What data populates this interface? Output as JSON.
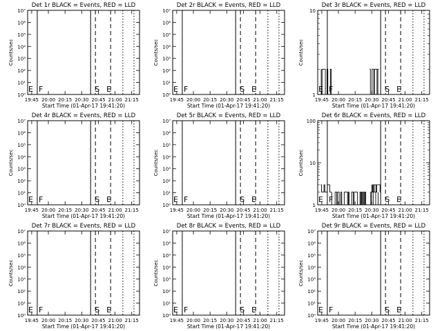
{
  "x_ticks": [
    "19:45",
    "20:00",
    "20:15",
    "20:30",
    "20:45",
    "21:00",
    "21:15"
  ],
  "x_label": "Start Time (01-Apr-17 19:41:20)",
  "y_label": "Counts/sec",
  "marker_letters": {
    "e": "E",
    "f": "F",
    "s": "S",
    "end": "E"
  },
  "colors": {
    "events": "#000000",
    "lld": "#ff0000"
  },
  "chart_data": [
    {
      "type": "line",
      "title": "Det 1r BLACK = Events, RED = LLD",
      "xlim": [
        "19:41:20",
        "21:22:00"
      ],
      "ylim": [
        1,
        10000000
      ],
      "yscale": "log",
      "y_ticks": [
        "10⁰",
        "10¹",
        "10²",
        "10³",
        "10⁴",
        "10⁵",
        "10⁶",
        "10⁷"
      ],
      "y_tick_values": [
        1,
        10,
        100,
        1000,
        10000,
        100000,
        1000000,
        10000000
      ],
      "markers": {
        "E": "19:41:20",
        "F": "19:50:00",
        "solid_line": "20:38:00",
        "S": "20:43:00",
        "dashed_1": "20:42:20",
        "E_end": "20:51:00",
        "dashed_2": "20:56:00",
        "dotted_1": "21:07:00",
        "dotted_2": "21:17:00"
      },
      "series": []
    },
    {
      "type": "line",
      "title": "Det 2r BLACK = Events, RED = LLD",
      "xlim": [
        "19:41:20",
        "21:22:00"
      ],
      "ylim": [
        1,
        10000000
      ],
      "yscale": "log",
      "y_ticks": [
        "10⁰",
        "10¹",
        "10²",
        "10³",
        "10⁴",
        "10⁵",
        "10⁶",
        "10⁷"
      ],
      "y_tick_values": [
        1,
        10,
        100,
        1000,
        10000,
        100000,
        1000000,
        10000000
      ],
      "markers": {
        "E": "19:41:20",
        "F": "19:50:00",
        "solid_line": "20:38:00",
        "S": "20:43:00",
        "dashed_1": "20:42:20",
        "E_end": "20:51:00",
        "dashed_2": "20:56:00",
        "dotted_1": "21:07:00",
        "dotted_2": "21:17:00"
      },
      "series": []
    },
    {
      "type": "line",
      "title": "Det 3r BLACK = Events, RED = LLD",
      "xlim": [
        "19:41:20",
        "21:22:00"
      ],
      "ylim": [
        1,
        10
      ],
      "yscale": "log",
      "y_ticks": [
        "1",
        "10"
      ],
      "y_tick_values": [
        1,
        10
      ],
      "markers": {
        "E": "19:41:20",
        "F": "19:50:00",
        "solid_line": "20:38:00",
        "S": "20:43:00",
        "dashed_1": "20:42:20",
        "E_end": "20:51:00",
        "dashed_2": "20:56:00",
        "dotted_1": "21:07:00",
        "dotted_2": "21:17:00"
      },
      "series": [
        {
          "style": "noise",
          "segments": [
            {
              "start": "19:44:30",
              "end": "19:53:30",
              "low": 1,
              "high": 2
            },
            {
              "start": "20:28:00",
              "end": "20:36:30",
              "low": 1,
              "high": 2
            }
          ]
        }
      ]
    },
    {
      "type": "line",
      "title": "Det 4r BLACK = Events, RED = LLD",
      "xlim": [
        "19:41:20",
        "21:22:00"
      ],
      "ylim": [
        1,
        10000000
      ],
      "yscale": "log",
      "y_ticks": [
        "10⁰",
        "10¹",
        "10²",
        "10³",
        "10⁴",
        "10⁵",
        "10⁶",
        "10⁷"
      ],
      "y_tick_values": [
        1,
        10,
        100,
        1000,
        10000,
        100000,
        1000000,
        10000000
      ],
      "markers": {
        "E": "19:41:20",
        "F": "19:50:00",
        "solid_line": "20:38:00",
        "S": "20:43:00",
        "dashed_1": "20:42:20",
        "E_end": "20:51:00",
        "dashed_2": "20:56:00",
        "dotted_1": "21:07:00",
        "dotted_2": "21:17:00"
      },
      "series": []
    },
    {
      "type": "line",
      "title": "Det 5r BLACK = Events, RED = LLD",
      "xlim": [
        "19:41:20",
        "21:22:00"
      ],
      "ylim": [
        1,
        10000000
      ],
      "yscale": "log",
      "y_ticks": [
        "10⁰",
        "10¹",
        "10²",
        "10³",
        "10⁴",
        "10⁵",
        "10⁶",
        "10⁷"
      ],
      "y_tick_values": [
        1,
        10,
        100,
        1000,
        10000,
        100000,
        1000000,
        10000000
      ],
      "markers": {
        "E": "19:41:20",
        "F": "19:50:00",
        "solid_line": "20:38:00",
        "S": "20:43:00",
        "dashed_1": "20:42:20",
        "E_end": "20:51:00",
        "dashed_2": "20:56:00",
        "dotted_1": "21:07:00",
        "dotted_2": "21:17:00"
      },
      "series": []
    },
    {
      "type": "line",
      "title": "Det 6r BLACK = Events, RED = LLD",
      "xlim": [
        "19:41:20",
        "21:22:00"
      ],
      "ylim": [
        1,
        100
      ],
      "yscale": "log",
      "y_ticks": [
        "1",
        "10",
        "100"
      ],
      "y_tick_values": [
        1,
        10,
        100
      ],
      "markers": {
        "E": "19:41:20",
        "F": "19:50:00",
        "solid_line": "20:38:00",
        "S": "20:43:00",
        "dashed_1": "20:42:20",
        "E_end": "20:51:00",
        "dashed_2": "20:56:00",
        "dotted_1": "21:07:00",
        "dotted_2": "21:17:00"
      },
      "series": [
        {
          "style": "noise",
          "segments": [
            {
              "start": "19:44:00",
              "end": "19:54:00",
              "low": 2,
              "high": 3
            },
            {
              "start": "19:54:00",
              "end": "20:36:00",
              "low": 1,
              "high": 2
            },
            {
              "start": "20:30:00",
              "end": "20:37:30",
              "low": 2,
              "high": 3
            }
          ]
        }
      ]
    },
    {
      "type": "line",
      "title": "Det 7r BLACK = Events, RED = LLD",
      "xlim": [
        "19:41:20",
        "21:22:00"
      ],
      "ylim": [
        1,
        10000000
      ],
      "yscale": "log",
      "y_ticks": [
        "10⁰",
        "10¹",
        "10²",
        "10³",
        "10⁴",
        "10⁵",
        "10⁶",
        "10⁷"
      ],
      "y_tick_values": [
        1,
        10,
        100,
        1000,
        10000,
        100000,
        1000000,
        10000000
      ],
      "markers": {
        "E": "19:41:20",
        "F": "19:50:00",
        "solid_line": "20:38:00",
        "S": "20:43:00",
        "dashed_1": "20:42:20",
        "E_end": "20:51:00",
        "dashed_2": "20:56:00",
        "dotted_1": "21:07:00",
        "dotted_2": "21:17:00"
      },
      "series": []
    },
    {
      "type": "line",
      "title": "Det 8r BLACK = Events, RED = LLD",
      "xlim": [
        "19:41:20",
        "21:22:00"
      ],
      "ylim": [
        1,
        10000000
      ],
      "yscale": "log",
      "y_ticks": [
        "10⁰",
        "10¹",
        "10²",
        "10³",
        "10⁴",
        "10⁵",
        "10⁶",
        "10⁷"
      ],
      "y_tick_values": [
        1,
        10,
        100,
        1000,
        10000,
        100000,
        1000000,
        10000000
      ],
      "markers": {
        "E": "19:41:20",
        "F": "19:50:00",
        "solid_line": "20:38:00",
        "S": "20:43:00",
        "dashed_1": "20:42:20",
        "E_end": "20:51:00",
        "dashed_2": "20:56:00",
        "dotted_1": "21:07:00",
        "dotted_2": "21:17:00"
      },
      "series": []
    },
    {
      "type": "line",
      "title": "Det 9r BLACK = Events, RED = LLD",
      "xlim": [
        "19:41:20",
        "21:22:00"
      ],
      "ylim": [
        1,
        10000000
      ],
      "yscale": "log",
      "y_ticks": [
        "10⁰",
        "10¹",
        "10²",
        "10³",
        "10⁴",
        "10⁵",
        "10⁶",
        "10⁷"
      ],
      "y_tick_values": [
        1,
        10,
        100,
        1000,
        10000,
        100000,
        1000000,
        10000000
      ],
      "markers": {
        "E": "19:41:20",
        "F": "19:50:00",
        "solid_line": "20:38:00",
        "S": "20:43:00",
        "dashed_1": "20:42:20",
        "E_end": "20:51:00",
        "dashed_2": "20:56:00",
        "dotted_1": "21:07:00",
        "dotted_2": "21:17:00"
      },
      "series": []
    }
  ]
}
